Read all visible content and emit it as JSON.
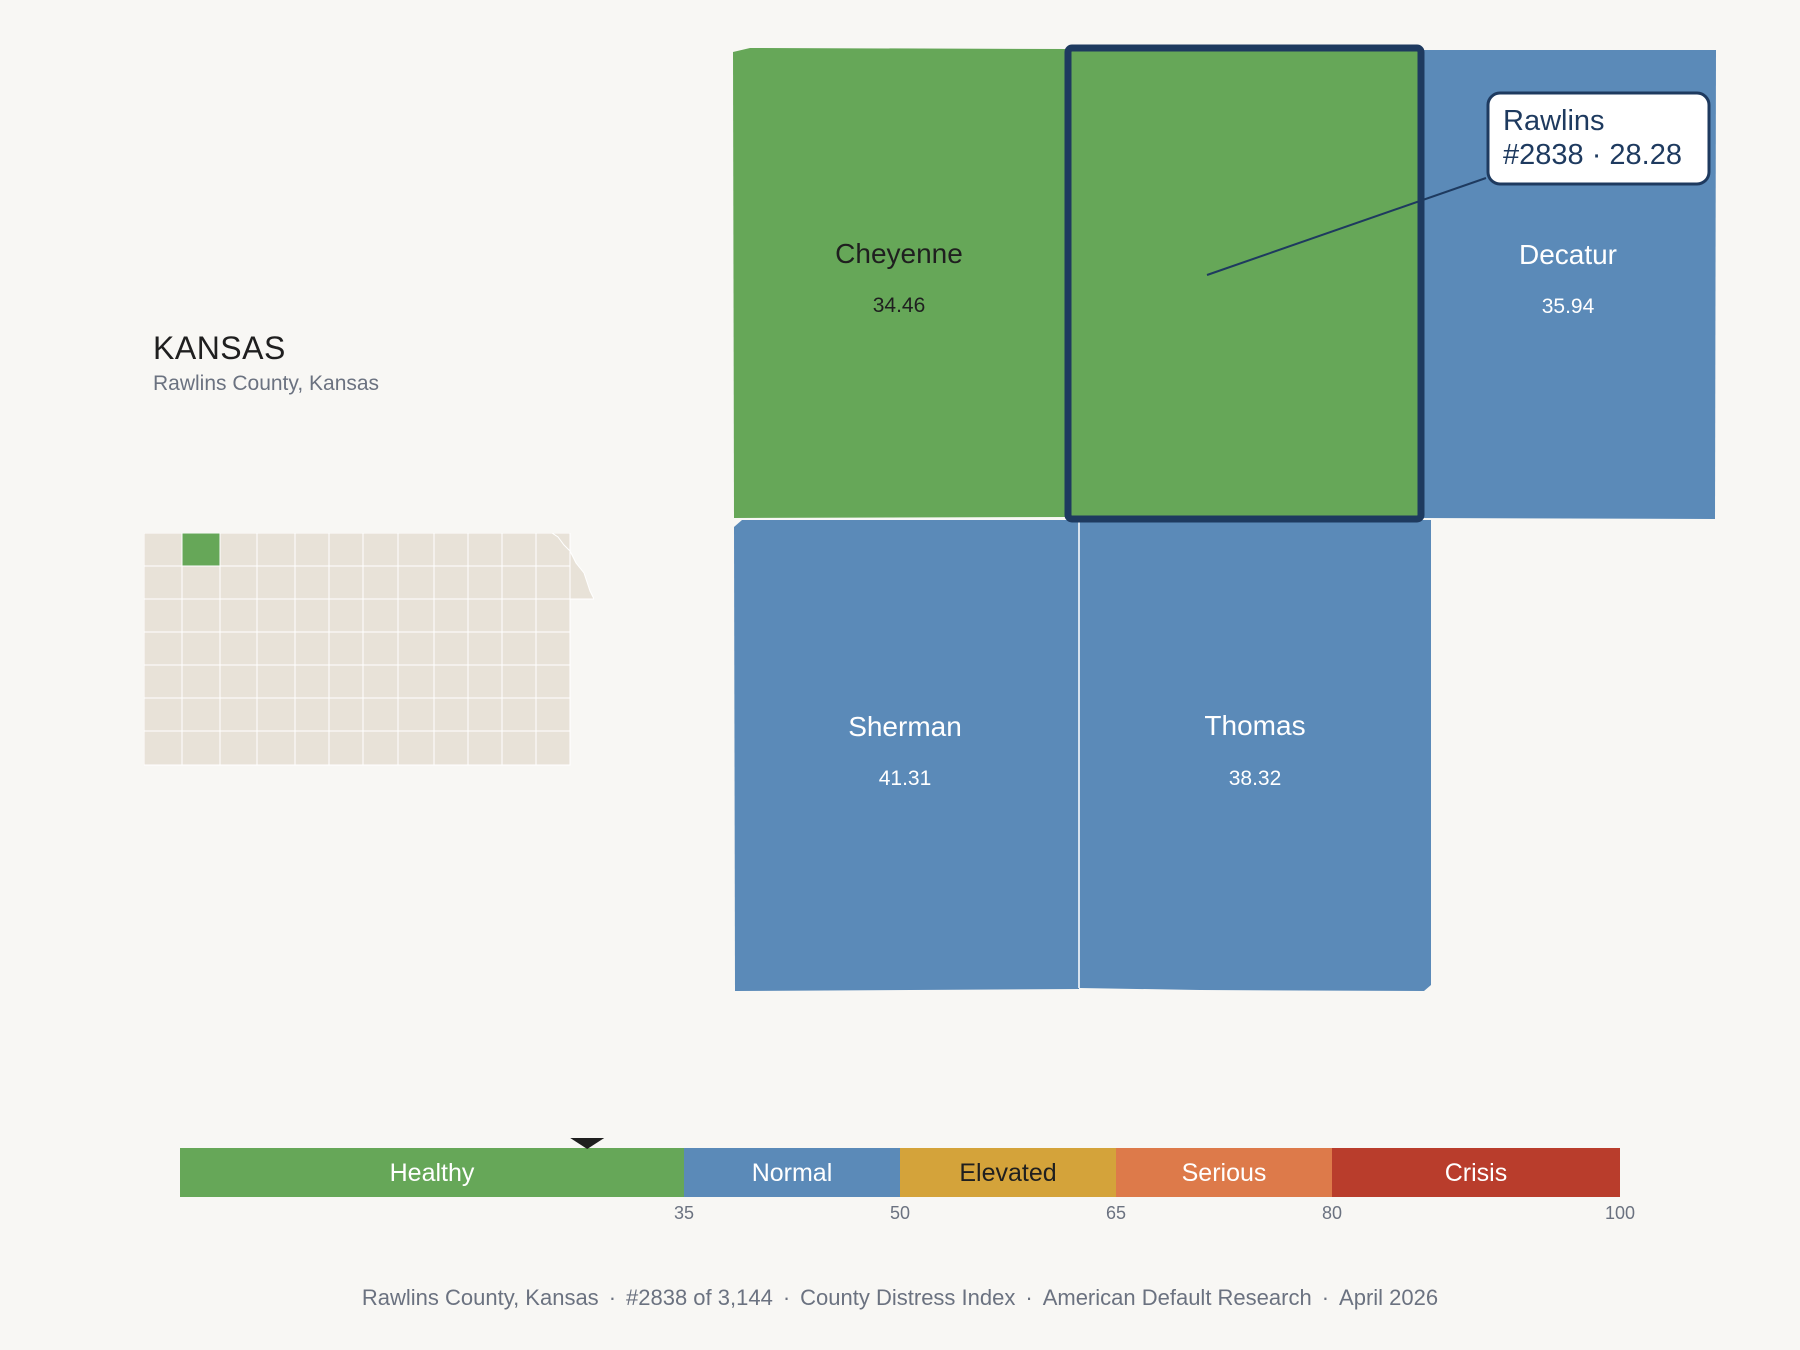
{
  "state": {
    "title": "KANSAS",
    "subtitle": "Rawlins County, Kansas"
  },
  "colors": {
    "healthy": "#66a758",
    "normal": "#5b8ab8",
    "elevated": "#d4a33a",
    "serious": "#dd7a4a",
    "crisis": "#b93d2c",
    "highlight_border": "#1e3a5f",
    "mini_fill": "#e8e2d8"
  },
  "counties": [
    {
      "id": "cheyenne",
      "name": "Cheyenne",
      "value": "34.46",
      "category": "healthy"
    },
    {
      "id": "rawlins",
      "name": "Rawlins",
      "value": "28.28",
      "category": "healthy",
      "selected": true
    },
    {
      "id": "decatur",
      "name": "Decatur",
      "value": "35.94",
      "category": "normal"
    },
    {
      "id": "sherman",
      "name": "Sherman",
      "value": "41.31",
      "category": "normal"
    },
    {
      "id": "thomas",
      "name": "Thomas",
      "value": "38.32",
      "category": "normal"
    }
  ],
  "callout": {
    "line1": "Rawlins",
    "line2": "#2838 · 28.28"
  },
  "scale": {
    "min": 0,
    "max": 100,
    "marker_value": 28.28,
    "segments": [
      {
        "label": "Healthy",
        "from": 0,
        "to": 35,
        "color": "#66a758",
        "text_color": "#ffffff"
      },
      {
        "label": "Normal",
        "from": 35,
        "to": 50,
        "color": "#5b8ab8",
        "text_color": "#ffffff"
      },
      {
        "label": "Elevated",
        "from": 50,
        "to": 65,
        "color": "#d4a33a",
        "text_color": "#1f1f1f"
      },
      {
        "label": "Serious",
        "from": 65,
        "to": 80,
        "color": "#dd7a4a",
        "text_color": "#ffffff"
      },
      {
        "label": "Crisis",
        "from": 80,
        "to": 100,
        "color": "#b93d2c",
        "text_color": "#ffffff"
      }
    ],
    "ticks": [
      "35",
      "50",
      "65",
      "80",
      "100"
    ]
  },
  "footer": {
    "county": "Rawlins County, Kansas",
    "rank": "#2838 of 3,144",
    "index": "County Distress Index",
    "source": "American Default Research",
    "date": "April 2026",
    "separator": "·"
  }
}
